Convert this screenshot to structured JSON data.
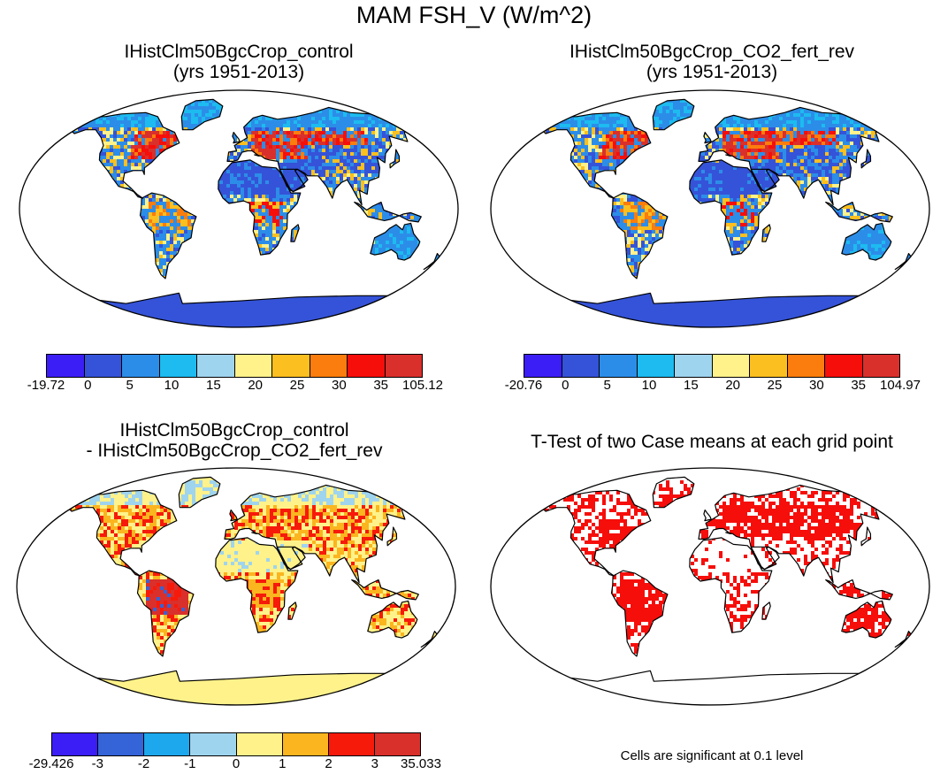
{
  "figure": {
    "title": "MAM FSH_V (W/m^2)",
    "panels": [
      {
        "title_line1": "IHistClm50BgcCrop_control",
        "title_line2": "(yrs 1951-2013)"
      },
      {
        "title_line1": "IHistClm50BgcCrop_CO2_fert_rev",
        "title_line2": "(yrs 1951-2013)"
      },
      {
        "title_line1": "IHistClm50BgcCrop_control",
        "title_line2": "- IHistClm50BgcCrop_CO2_fert_rev"
      },
      {
        "title_line1": "T-Test of two Case means at each grid point",
        "title_line2": ""
      }
    ],
    "significance_note": "Cells are significant at 0.1 level"
  },
  "colorbars": [
    {
      "labels": [
        "-19.72",
        "0",
        "5",
        "10",
        "15",
        "20",
        "25",
        "30",
        "35",
        "105.12"
      ],
      "colors": [
        "#3b1ef5",
        "#3553d8",
        "#2c8de8",
        "#1dbbf0",
        "#9fd4ee",
        "#fff28a",
        "#fbbf1f",
        "#fb7d0d",
        "#f60e0b",
        "#d9302c"
      ]
    },
    {
      "labels": [
        "-20.76",
        "0",
        "5",
        "10",
        "15",
        "20",
        "25",
        "30",
        "35",
        "104.97"
      ],
      "colors": [
        "#3b1ef5",
        "#3553d8",
        "#2c8de8",
        "#1dbbf0",
        "#9fd4ee",
        "#fff28a",
        "#fbbf1f",
        "#fb7d0d",
        "#f60e0b",
        "#d9302c"
      ]
    },
    {
      "labels": [
        "-29.426",
        "-3",
        "-2",
        "-1",
        "0",
        "1",
        "2",
        "3",
        "35.033"
      ],
      "colors": [
        "#3b1ef5",
        "#3563d8",
        "#1da8ee",
        "#9fd4ee",
        "#fff28a",
        "#fbb51f",
        "#f61a0b",
        "#d9302c"
      ]
    }
  ],
  "chart_data": {
    "type": "heatmap",
    "title": "MAM FSH_V (W/m^2)",
    "projection": "Robinson",
    "panels": [
      {
        "name": "IHistClm50BgcCrop_control",
        "years": "1951-2013",
        "min": -19.72,
        "max": 105.12,
        "levels": [
          0,
          5,
          10,
          15,
          20,
          25,
          30,
          35
        ]
      },
      {
        "name": "IHistClm50BgcCrop_CO2_fert_rev",
        "years": "1951-2013",
        "min": -20.76,
        "max": 104.97,
        "levels": [
          0,
          5,
          10,
          15,
          20,
          25,
          30,
          35
        ]
      },
      {
        "name": "IHistClm50BgcCrop_control - IHistClm50BgcCrop_CO2_fert_rev",
        "min": -29.426,
        "max": 35.033,
        "levels": [
          -3,
          -2,
          -1,
          0,
          1,
          2,
          3
        ]
      },
      {
        "name": "T-Test of two Case means at each grid point",
        "significance_level": 0.1,
        "significant_color": "#f60e0b"
      }
    ]
  }
}
